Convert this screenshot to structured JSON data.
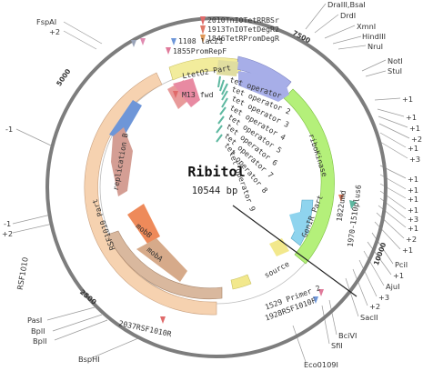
{
  "plasmid": {
    "name": "Ribitol",
    "size_label": "10544 bp",
    "length": 10544,
    "ticks": [
      {
        "pos": 2500,
        "label": "2500"
      },
      {
        "pos": 5000,
        "label": "5000"
      },
      {
        "pos": 7500,
        "label": "7500"
      },
      {
        "pos": 10000,
        "label": "10000"
      }
    ]
  },
  "enzymes_right": [
    {
      "label": "DraIII,BsaI"
    },
    {
      "label": "DrdI"
    },
    {
      "label": "XmnI"
    },
    {
      "label": "HindIII"
    },
    {
      "label": "NruI"
    },
    {
      "label": "NotI"
    },
    {
      "label": "StuI"
    },
    {
      "label": "+1"
    },
    {
      "label": "+1"
    },
    {
      "label": "+1"
    },
    {
      "label": "+2"
    },
    {
      "label": "+1"
    },
    {
      "label": "+3"
    },
    {
      "label": "+1"
    },
    {
      "label": "+1"
    },
    {
      "label": "+1"
    },
    {
      "label": "+1"
    },
    {
      "label": "+3"
    },
    {
      "label": "+1"
    },
    {
      "label": "+2"
    },
    {
      "label": "+1"
    },
    {
      "label": "PciI"
    },
    {
      "label": "+1"
    },
    {
      "label": "AjuI"
    },
    {
      "label": "+3"
    },
    {
      "label": "+2"
    },
    {
      "label": "SacII"
    },
    {
      "label": "BciVI"
    },
    {
      "label": "SfiI"
    },
    {
      "label": "Eco0109I"
    }
  ],
  "enzymes_left": [
    {
      "label": "FspAI"
    },
    {
      "label": "+2"
    },
    {
      "label": "-1"
    },
    {
      "label": "-1"
    },
    {
      "label": "+2"
    },
    {
      "label": "PasI"
    },
    {
      "label": "BplI"
    },
    {
      "label": "BplI"
    },
    {
      "label": "BspHI"
    }
  ],
  "features": [
    {
      "label": "LtetO2 Part"
    },
    {
      "label": "riboKinase"
    },
    {
      "label": "GenIR Part"
    },
    {
      "label": "RSF1010 Part"
    },
    {
      "label": "mobA"
    },
    {
      "label": "mobB"
    },
    {
      "label": "replication B"
    },
    {
      "label": "source"
    },
    {
      "label": "1108 lacZ1"
    },
    {
      "label": "1855PromRepF"
    },
    {
      "label": "M13 fwd"
    },
    {
      "label": "2010TnI0TetRRBSr"
    },
    {
      "label": "1913TnI0TetDegR2"
    },
    {
      "label": "1846TetRPromDegR"
    },
    {
      "label": "tet operator"
    },
    {
      "label": "tet operator 2"
    },
    {
      "label": "tet operator 3"
    },
    {
      "label": "tet operator 4"
    },
    {
      "label": "tet operator 5"
    },
    {
      "label": "tet operator 6"
    },
    {
      "label": "tet operator 7"
    },
    {
      "label": "tet operator 8"
    },
    {
      "label": "tet operator 9"
    },
    {
      "label": "1822umd"
    },
    {
      "label": "1970-1510plus6"
    },
    {
      "label": "1529 Primer 2"
    },
    {
      "label": "1928RSF1010F"
    },
    {
      "label": "2037RSF1010R"
    },
    {
      "label": "RSF1010"
    }
  ],
  "colors": {
    "backbone": "#7d7d7d",
    "ltet": "#f2ec9c",
    "ribokinase": "#b4f07a",
    "genir": "#8fd4ee",
    "rsf1010": "#f6d2b0",
    "mobA": "#d9b89e",
    "mobB": "#ee8a5a",
    "repB": "#d49e94",
    "blue_feature": "#6e96d8",
    "lacz": "#f2e88c",
    "source": "#a7aee8",
    "tet_op": "#5db8a0",
    "enzyme_line": "#888888"
  }
}
